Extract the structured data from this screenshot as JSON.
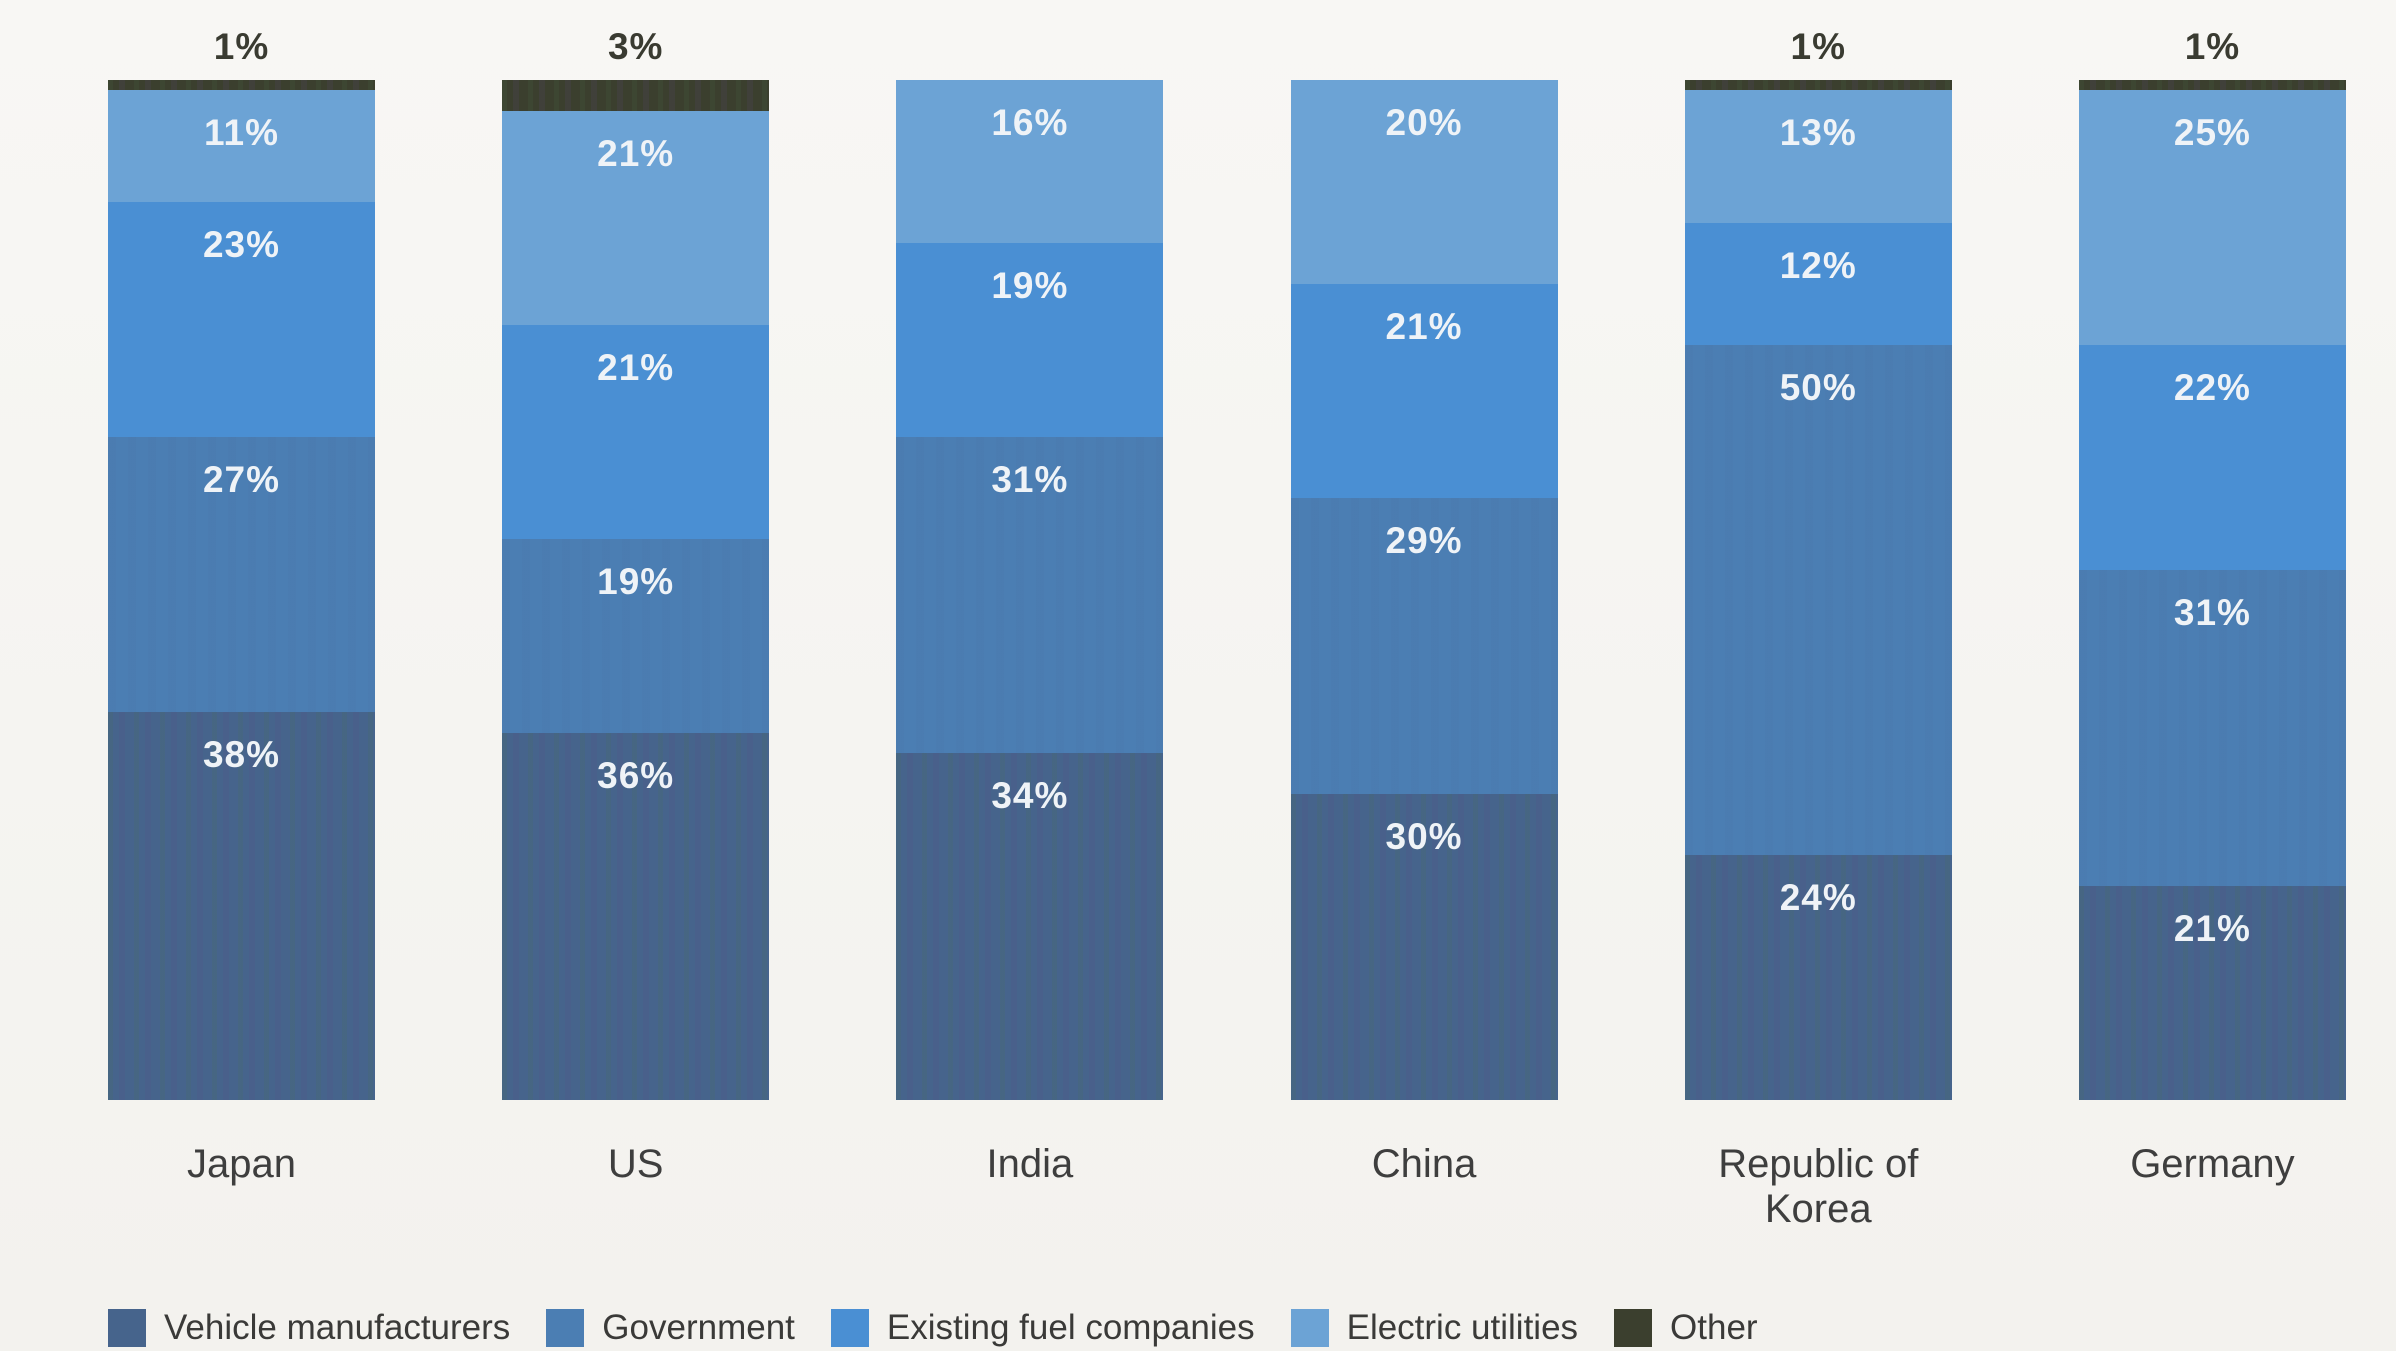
{
  "page": {
    "background_color": "#f5f4f1"
  },
  "chart_data": {
    "type": "bar",
    "subtype": "stacked-100-percent",
    "title": "",
    "xlabel": "",
    "ylabel": "",
    "ylim": [
      0,
      100
    ],
    "grid": false,
    "legend_position": "bottom",
    "value_suffix": "%",
    "inside_label_min_value": 10,
    "categories": [
      "Japan",
      "US",
      "India",
      "China",
      "Republic of Korea",
      "Germany"
    ],
    "series": [
      {
        "name": "Vehicle manufacturers",
        "color": "#46648C",
        "values": [
          38,
          36,
          34,
          30,
          24,
          21
        ]
      },
      {
        "name": "Government",
        "color": "#4B7EB3",
        "values": [
          27,
          19,
          31,
          29,
          50,
          31
        ]
      },
      {
        "name": "Existing fuel companies",
        "color": "#4A8FD3",
        "values": [
          23,
          21,
          19,
          21,
          12,
          22
        ]
      },
      {
        "name": "Electric utilities",
        "color": "#6CA3D5",
        "values": [
          11,
          21,
          16,
          20,
          13,
          25
        ]
      },
      {
        "name": "Other",
        "color": "#3B3F2E",
        "values": [
          1,
          3,
          0,
          0,
          1,
          1
        ]
      }
    ],
    "stack_order_top_to_bottom": [
      "Other",
      "Electric utilities",
      "Existing fuel companies",
      "Government",
      "Vehicle manufacturers"
    ],
    "top_labels": [
      "1%",
      "3%",
      "",
      "",
      "1%",
      "1%"
    ],
    "inside_labels": {
      "Japan": [
        "11%",
        "23%",
        "27%",
        "38%"
      ],
      "US": [
        "21%",
        "21%",
        "19%",
        "36%"
      ],
      "India": [
        "16%",
        "19%",
        "31%",
        "34%"
      ],
      "China": [
        "20%",
        "21%",
        "29%",
        "30%"
      ],
      "Republic of Korea": [
        "13%",
        "12%",
        "50%",
        "24%"
      ],
      "Germany": [
        "25%",
        "22%",
        "31%",
        "21%"
      ]
    },
    "colors_text": {
      "inside_label": "#EFF3F7",
      "top_label": "#3A3B31",
      "category_label": "#3E3E3E",
      "legend_label": "#3A3A38"
    }
  }
}
